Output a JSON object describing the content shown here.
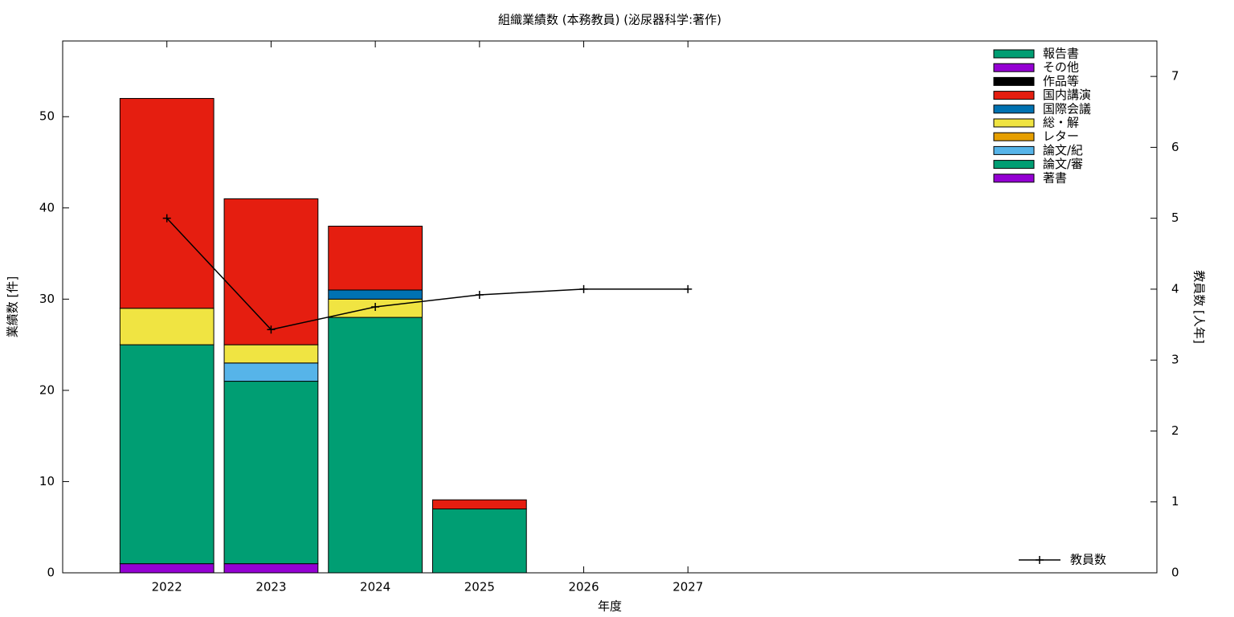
{
  "chart_data": {
    "type": "bar",
    "stacked": true,
    "title": "組織業績数 (本務教員) (泌尿器科学:著作)",
    "x_label": "年度",
    "y_label": "業績数 [件]",
    "y2_label": "教員数 [人年]",
    "x": [
      2022,
      2023,
      2024,
      2025,
      2026,
      2027
    ],
    "xlim": [
      2021,
      2031.5
    ],
    "xticks": [
      2022,
      2023,
      2024,
      2025,
      2026,
      2027
    ],
    "ylim": [
      0,
      58.3
    ],
    "yticks": [
      0,
      10,
      20,
      30,
      40,
      50
    ],
    "y2lim": [
      0,
      7.5
    ],
    "y2ticks": [
      0,
      1,
      2,
      3,
      4,
      5,
      6,
      7
    ],
    "series": [
      {
        "name": "著書",
        "color": "#9400d3",
        "values": [
          1,
          1,
          0,
          0,
          0,
          0
        ]
      },
      {
        "name": "論文/審",
        "color": "#009e73",
        "values": [
          24,
          20,
          28,
          7,
          0,
          0
        ]
      },
      {
        "name": "論文/紀",
        "color": "#56b4e9",
        "values": [
          0,
          2,
          0,
          0,
          0,
          0
        ]
      },
      {
        "name": "レター",
        "color": "#e69f00",
        "values": [
          0,
          0,
          0,
          0,
          0,
          0
        ]
      },
      {
        "name": "総・解",
        "color": "#f0e442",
        "values": [
          4,
          2,
          2,
          0,
          0,
          0
        ]
      },
      {
        "name": "国際会議",
        "color": "#0072b2",
        "values": [
          0,
          0,
          1,
          0,
          0,
          0
        ]
      },
      {
        "name": "国内講演",
        "color": "#e51e10",
        "values": [
          23,
          16,
          7,
          1,
          0,
          0
        ]
      },
      {
        "name": "作品等",
        "color": "#000000",
        "values": [
          0,
          0,
          0,
          0,
          0,
          0
        ]
      },
      {
        "name": "その他",
        "color": "#9400d3",
        "values": [
          0,
          0,
          0,
          0,
          0,
          0
        ]
      },
      {
        "name": "報告書",
        "color": "#009e73",
        "values": [
          0,
          0,
          0,
          0,
          0,
          0
        ]
      },
      {
        "name": "教員数",
        "type": "line",
        "axis": "y2",
        "color": "#000000",
        "values": [
          5.0,
          3.43,
          3.75,
          3.92,
          4.0,
          4.0
        ]
      }
    ]
  }
}
